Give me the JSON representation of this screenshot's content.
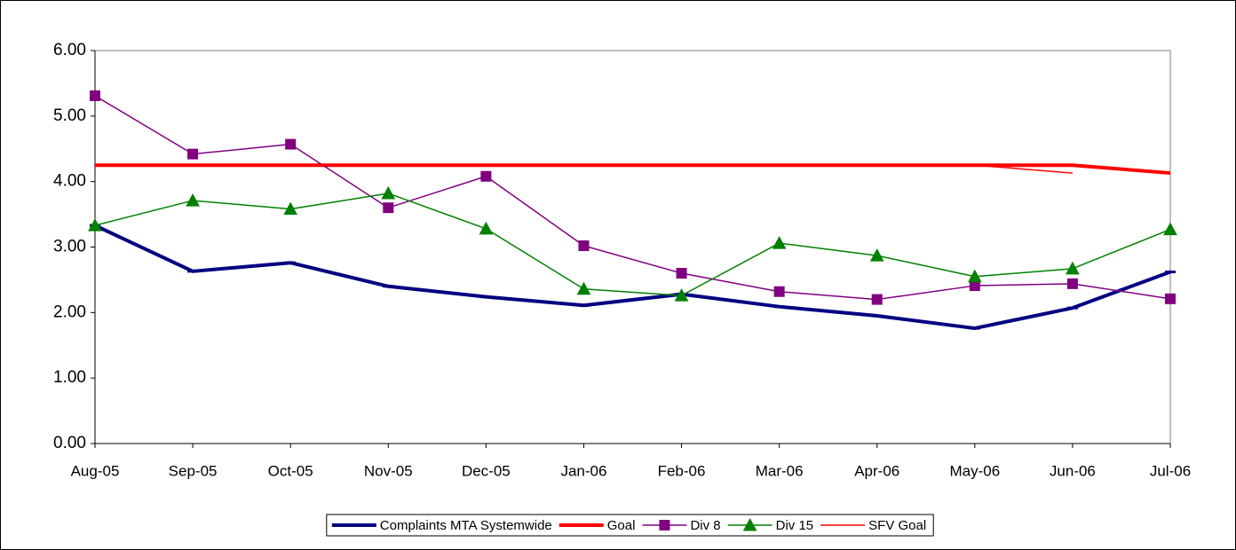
{
  "chart_data": {
    "type": "line",
    "categories": [
      "Aug-05",
      "Sep-05",
      "Oct-05",
      "Nov-05",
      "Dec-05",
      "Jan-06",
      "Feb-06",
      "Mar-06",
      "Apr-06",
      "May-06",
      "Jun-06",
      "Jul-06"
    ],
    "series": [
      {
        "name": "Complaints MTA Systemwide",
        "color": "#000080",
        "style": "thick",
        "marker": "dash",
        "values": [
          3.33,
          2.63,
          2.76,
          2.4,
          2.24,
          2.11,
          2.28,
          2.09,
          1.95,
          1.76,
          2.07,
          2.62
        ]
      },
      {
        "name": "Goal",
        "color": "#ff0000",
        "style": "thick",
        "marker": "none",
        "values": [
          4.25,
          4.25,
          4.25,
          4.25,
          4.25,
          4.25,
          4.25,
          4.25,
          4.25,
          4.25,
          4.25,
          4.13
        ]
      },
      {
        "name": "Div 8",
        "color": "#800080",
        "style": "thin",
        "marker": "square",
        "values": [
          5.31,
          4.42,
          4.57,
          3.6,
          4.08,
          3.02,
          2.6,
          2.32,
          2.2,
          2.41,
          2.44,
          2.21
        ]
      },
      {
        "name": "Div 15",
        "color": "#008000",
        "style": "thin",
        "marker": "triangle",
        "values": [
          3.33,
          3.71,
          3.58,
          3.82,
          3.28,
          2.36,
          2.26,
          3.06,
          2.87,
          2.55,
          2.67,
          3.27
        ]
      },
      {
        "name": "SFV Goal",
        "color": "#ff0000",
        "style": "hairline",
        "marker": "none",
        "values": [
          4.25,
          4.25,
          4.25,
          4.25,
          4.25,
          4.25,
          4.25,
          4.25,
          4.25,
          4.25,
          4.13,
          null
        ]
      }
    ],
    "ylim": [
      0,
      6
    ],
    "yticks": [
      {
        "value": 0,
        "label": "0.00"
      },
      {
        "value": 1,
        "label": "1.00"
      },
      {
        "value": 2,
        "label": "2.00"
      },
      {
        "value": 3,
        "label": "3.00"
      },
      {
        "value": 4,
        "label": "4.00"
      },
      {
        "value": 5,
        "label": "5.00"
      },
      {
        "value": 6,
        "label": "6.00"
      }
    ],
    "grid": false,
    "legend": "bottom"
  }
}
